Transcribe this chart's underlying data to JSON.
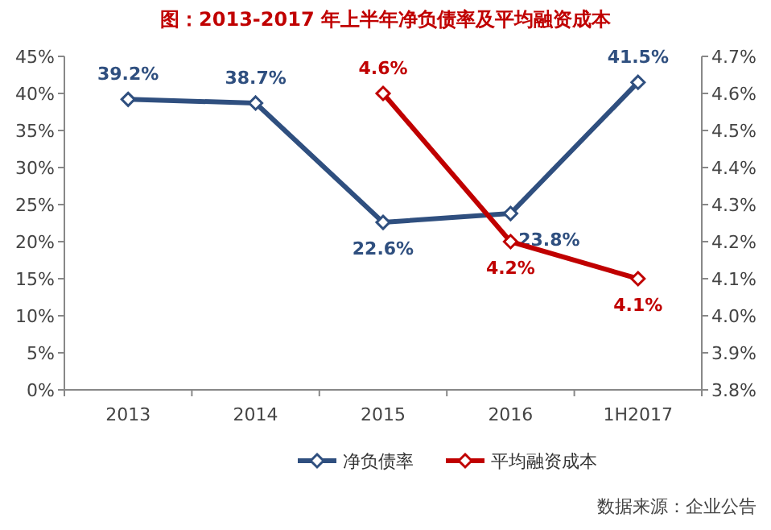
{
  "chart_data": {
    "type": "line",
    "title": "图：2013-2017 年上半年净负债率及平均融资成本",
    "categories": [
      "2013",
      "2014",
      "2015",
      "2016",
      "1H2017"
    ],
    "series": [
      {
        "name": "净负债率",
        "color": "#2f4f7f",
        "values": [
          39.2,
          38.7,
          22.6,
          23.8,
          41.5
        ],
        "value_labels": [
          "39.2%",
          "38.7%",
          "22.6%",
          "23.8%",
          "41.5%"
        ]
      },
      {
        "name": "平均融资成本",
        "color": "#c00000",
        "axis": "y2",
        "values": [
          null,
          null,
          4.6,
          4.2,
          4.1
        ],
        "value_labels": [
          null,
          null,
          "4.6%",
          "4.2%",
          "4.1%"
        ]
      }
    ],
    "ylim": [
      0,
      45
    ],
    "yticks": [
      {
        "value": 0,
        "label": "0%"
      },
      {
        "value": 5,
        "label": "5%"
      },
      {
        "value": 10,
        "label": "10%"
      },
      {
        "value": 15,
        "label": "15%"
      },
      {
        "value": 20,
        "label": "20%"
      },
      {
        "value": 25,
        "label": "25%"
      },
      {
        "value": 30,
        "label": "30%"
      },
      {
        "value": 35,
        "label": "35%"
      },
      {
        "value": 40,
        "label": "40%"
      },
      {
        "value": 45,
        "label": "45%"
      }
    ],
    "y2lim": [
      3.8,
      4.7
    ],
    "y2ticks": [
      {
        "value": 3.8,
        "label": "3.8%"
      },
      {
        "value": 3.9,
        "label": "3.9%"
      },
      {
        "value": 4.0,
        "label": "4.0%"
      },
      {
        "value": 4.1,
        "label": "4.1%"
      },
      {
        "value": 4.2,
        "label": "4.2%"
      },
      {
        "value": 4.3,
        "label": "4.3%"
      },
      {
        "value": 4.4,
        "label": "4.4%"
      },
      {
        "value": 4.5,
        "label": "4.5%"
      },
      {
        "value": 4.6,
        "label": "4.6%"
      },
      {
        "value": 4.7,
        "label": "4.7%"
      }
    ],
    "marker": "diamond",
    "legend": "bottom",
    "grid": false,
    "annotations": [
      "数据来源：企业公告"
    ]
  }
}
